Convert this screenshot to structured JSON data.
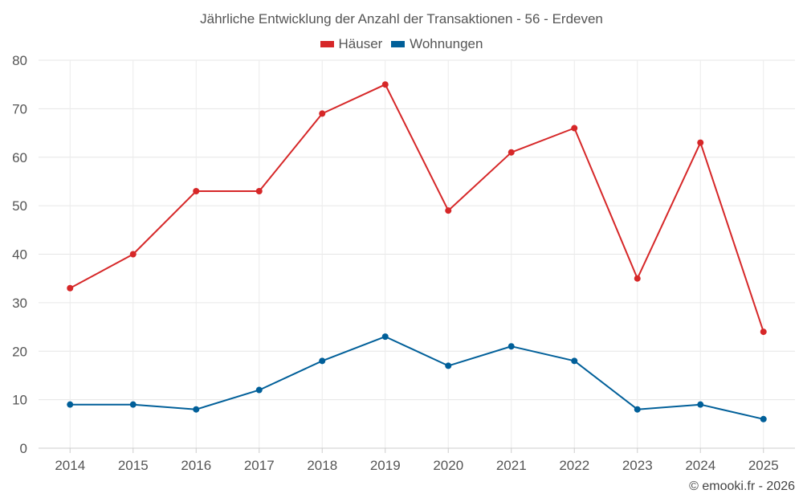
{
  "chart_data": {
    "type": "line",
    "title": "Jährliche Entwicklung der Anzahl der Transaktionen - 56 - Erdeven",
    "categories": [
      "2014",
      "2015",
      "2016",
      "2017",
      "2018",
      "2019",
      "2020",
      "2021",
      "2022",
      "2023",
      "2024",
      "2025"
    ],
    "series": [
      {
        "name": "Häuser",
        "color": "#d62728",
        "values": [
          33,
          40,
          53,
          53,
          69,
          75,
          49,
          61,
          66,
          35,
          63,
          24
        ]
      },
      {
        "name": "Wohnungen",
        "color": "#005f99",
        "values": [
          9,
          9,
          8,
          12,
          18,
          23,
          17,
          21,
          18,
          8,
          9,
          6
        ]
      }
    ],
    "ylim": [
      0,
      80
    ],
    "yticks": [
      0,
      10,
      20,
      30,
      40,
      50,
      60,
      70,
      80
    ],
    "xlabel": "",
    "ylabel": "",
    "grid": true,
    "legend_position": "top-center"
  },
  "credit": "© emooki.fr - 2026"
}
